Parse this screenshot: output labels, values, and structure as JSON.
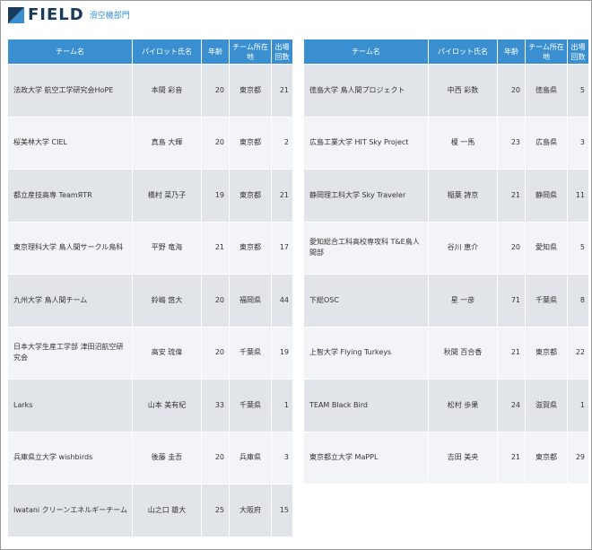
{
  "header": {
    "logo_text": "FIELD",
    "logo_sub": "滑空機部門"
  },
  "columns": {
    "team": "チーム名",
    "pilot": "パイロット氏名",
    "age": "年齢",
    "location": "チーム所在地",
    "appearances_line1": "出場",
    "appearances_line2": "回数"
  },
  "left_rows": [
    {
      "team": "法政大学 航空工学研究会HoPE",
      "pilot": "本間 彩音",
      "age": "20",
      "location": "東京都",
      "appearances": "21"
    },
    {
      "team": "桜美林大学 CIEL",
      "pilot": "真島 大輝",
      "age": "20",
      "location": "東京都",
      "appearances": "2"
    },
    {
      "team": "都立産技高専 TeamЯTR",
      "pilot": "橋村 菜乃子",
      "age": "19",
      "location": "東京都",
      "appearances": "21"
    },
    {
      "team": "東京理科大学 鳥人間サークル鳥科",
      "pilot": "平野 竜海",
      "age": "21",
      "location": "東京都",
      "appearances": "17"
    },
    {
      "team": "九州大学 鳥人間チーム",
      "pilot": "鈴嶋 悠大",
      "age": "20",
      "location": "福岡県",
      "appearances": "44"
    },
    {
      "team": "日本大学生産工学部 津田沼航空研究会",
      "pilot": "高安 琉偉",
      "age": "20",
      "location": "千葉県",
      "appearances": "19"
    },
    {
      "team": "Larks",
      "pilot": "山本 美有紀",
      "age": "33",
      "location": "千葉県",
      "appearances": "1"
    },
    {
      "team": "兵庫県立大学 wishbirds",
      "pilot": "後藤 圭吾",
      "age": "20",
      "location": "兵庫県",
      "appearances": "3"
    },
    {
      "team": "Iwatani クリーンエネルギーチーム",
      "pilot": "山之口 雄大",
      "age": "25",
      "location": "大阪府",
      "appearances": "15"
    }
  ],
  "right_rows": [
    {
      "team": "徳島大学 鳥人間プロジェクト",
      "pilot": "中西 彩数",
      "age": "20",
      "location": "徳島県",
      "appearances": "5"
    },
    {
      "team": "広島工業大学 HIT Sky Project",
      "pilot": "榎 一馬",
      "age": "23",
      "location": "広島県",
      "appearances": "3"
    },
    {
      "team": "静岡理工科大学 Sky Traveler",
      "pilot": "稲葉 詩京",
      "age": "21",
      "location": "静岡県",
      "appearances": "11"
    },
    {
      "team": "愛知総合工科高校専攻科 T&E鳥人間部",
      "pilot": "谷川 恵介",
      "age": "20",
      "location": "愛知県",
      "appearances": "5"
    },
    {
      "team": "下総OSC",
      "pilot": "星 一彦",
      "age": "71",
      "location": "千葉県",
      "appearances": "8"
    },
    {
      "team": "上智大学 Flying Turkeys",
      "pilot": "秋間 百合香",
      "age": "21",
      "location": "東京都",
      "appearances": "22"
    },
    {
      "team": "TEAM Black Bird",
      "pilot": "松村 歩果",
      "age": "24",
      "location": "滋賀県",
      "appearances": "1"
    },
    {
      "team": "東京都立大学 MaPPL",
      "pilot": "吉田 美央",
      "age": "21",
      "location": "東京都",
      "appearances": "29"
    }
  ],
  "colors": {
    "header_bg": "#3a8fd0",
    "row_odd": "#e1e5ea",
    "row_even": "#f2f4f7",
    "logo_dark": "#1a3a5c"
  }
}
